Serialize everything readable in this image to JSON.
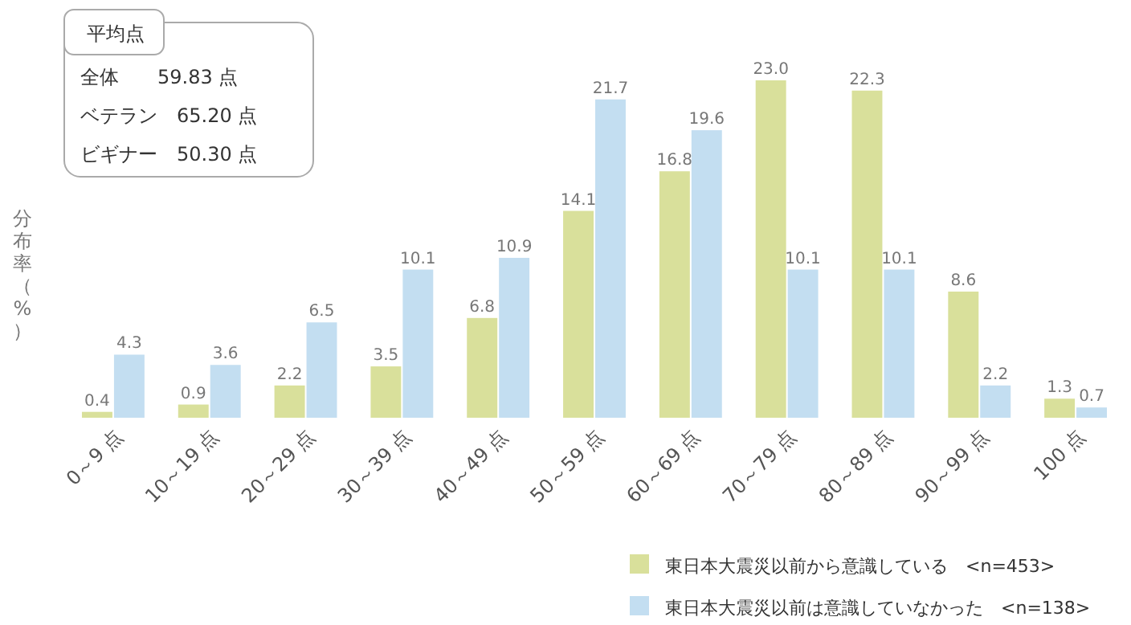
{
  "chart_data": {
    "type": "bar",
    "ylabel": "分布率（%）",
    "categories": [
      "0～9 点",
      "10～19 点",
      "20～29 点",
      "30～39 点",
      "40～49 点",
      "50～59 点",
      "60～69 点",
      "70～79 点",
      "80～89 点",
      "90～99 点",
      "100 点"
    ],
    "series": [
      {
        "name": "東日本大震災以前から意識している　<n=453>",
        "color": "#d9e09b",
        "values": [
          0.4,
          0.9,
          2.2,
          3.5,
          6.8,
          14.1,
          16.8,
          23.0,
          22.3,
          8.6,
          1.3
        ],
        "value_labels": [
          "0.4",
          "0.9",
          "2.2",
          "3.5",
          "6.8",
          "14.1",
          "16.8",
          "23.0",
          "22.3",
          "8.6",
          "1.3"
        ]
      },
      {
        "name": "東日本大震災以前は意識していなかった　<n=138>",
        "color": "#c3def1",
        "values": [
          4.3,
          3.6,
          6.5,
          10.1,
          10.9,
          21.7,
          19.6,
          10.1,
          10.1,
          2.2,
          0.7
        ],
        "value_labels": [
          "4.3",
          "3.6",
          "6.5",
          "10.1",
          "10.9",
          "21.7",
          "19.6",
          "10.1",
          "10.1",
          "2.2",
          "0.7"
        ]
      }
    ],
    "legend": "bottom right",
    "annotations": [
      "平均点",
      "全体　　59.83 点",
      "ベテラン　65.20 点",
      "ビギナー　50.30 点"
    ]
  }
}
